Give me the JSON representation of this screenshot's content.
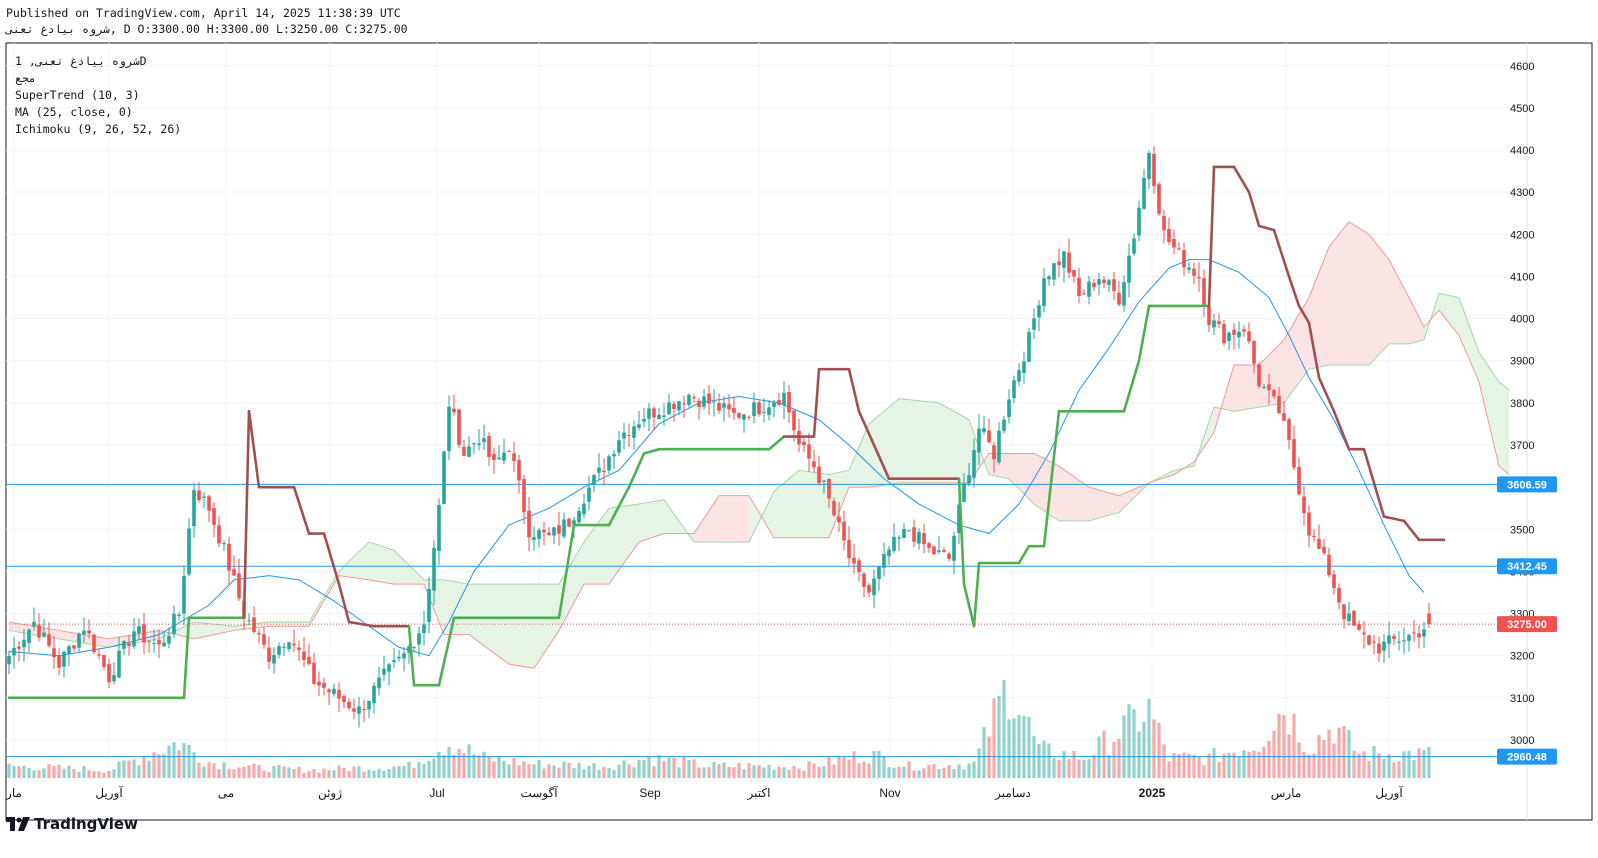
{
  "header": {
    "published": "Published on TradingView.com, April 14, 2025 11:38:39 UTC",
    "ohlc": "شروه بیادغ تعنی, D O:3300.00 H:3300.00 L:3250.00 C:3275.00"
  },
  "legend": {
    "symbol": "شروه بیادغ تعنی, 1D",
    "exchange": "مجع",
    "indicators": [
      "SuperTrend (10, 3)",
      "MA (25, close, 0)",
      "Ichimoku (9, 26, 52, 26)"
    ]
  },
  "brand": {
    "name": "TradingView",
    "icon": "tradingview-logo-icon"
  },
  "colors": {
    "up": "#26a69a",
    "down": "#ef5350",
    "supertrend_up": "#4caf50",
    "supertrend_down": "#a05050",
    "ma": "#2196f3",
    "hline": "#2196f3",
    "last_price": "#ef5350",
    "cloud_bull": "#e6f4e6",
    "cloud_bear": "#fde4e4"
  },
  "chart_data": {
    "type": "candlestick",
    "x_axis_labels": [
      "مار",
      "آوریل",
      "می",
      "ژوئن",
      "Jul",
      "آگوست",
      "Sep",
      "اکتبر",
      "Nov",
      "دسامبر",
      "2025",
      "مارس",
      "آوریل"
    ],
    "y_ticks": [
      3000,
      3100,
      3200,
      3300,
      3400,
      3500,
      3600,
      3700,
      3800,
      3900,
      4000,
      4100,
      4200,
      4300,
      4400,
      4500,
      4600
    ],
    "ylim": [
      2910,
      4655
    ],
    "horizontal_lines": [
      {
        "value": 3606.59,
        "label": "3606.59"
      },
      {
        "value": 3412.45,
        "label": "3412.45"
      },
      {
        "value": 2960.48,
        "label": "2960.48"
      }
    ],
    "last_price": {
      "value": 3275.0,
      "label": "3275.00"
    },
    "ohlc_last": {
      "open": 3300.0,
      "high": 3300.0,
      "low": 3250.0,
      "close": 3275.0
    },
    "price_anchors": [
      [
        0,
        3200
      ],
      [
        5,
        3280
      ],
      [
        10,
        3180
      ],
      [
        15,
        3270
      ],
      [
        20,
        3150
      ],
      [
        25,
        3260
      ],
      [
        30,
        3220
      ],
      [
        34,
        3300
      ],
      [
        37,
        3600
      ],
      [
        40,
        3550
      ],
      [
        43,
        3450
      ],
      [
        47,
        3300
      ],
      [
        52,
        3200
      ],
      [
        56,
        3250
      ],
      [
        61,
        3140
      ],
      [
        66,
        3100
      ],
      [
        70,
        3070
      ],
      [
        75,
        3150
      ],
      [
        79,
        3200
      ],
      [
        83,
        3280
      ],
      [
        86,
        3550
      ],
      [
        88,
        3800
      ],
      [
        91,
        3680
      ],
      [
        94,
        3720
      ],
      [
        97,
        3650
      ],
      [
        100,
        3700
      ],
      [
        104,
        3500
      ],
      [
        108,
        3480
      ],
      [
        112,
        3520
      ],
      [
        115,
        3580
      ],
      [
        119,
        3650
      ],
      [
        122,
        3720
      ],
      [
        127,
        3770
      ],
      [
        131,
        3790
      ],
      [
        136,
        3820
      ],
      [
        140,
        3800
      ],
      [
        145,
        3770
      ],
      [
        150,
        3790
      ],
      [
        155,
        3820
      ],
      [
        158,
        3700
      ],
      [
        161,
        3650
      ],
      [
        163,
        3600
      ],
      [
        166,
        3500
      ],
      [
        169,
        3400
      ],
      [
        172,
        3350
      ],
      [
        176,
        3450
      ],
      [
        180,
        3500
      ],
      [
        184,
        3450
      ],
      [
        188,
        3430
      ],
      [
        191,
        3600
      ],
      [
        194,
        3740
      ],
      [
        197,
        3680
      ],
      [
        200,
        3820
      ],
      [
        204,
        3950
      ],
      [
        207,
        4100
      ],
      [
        211,
        4150
      ],
      [
        214,
        4050
      ],
      [
        218,
        4100
      ],
      [
        222,
        4050
      ],
      [
        225,
        4200
      ],
      [
        228,
        4400
      ],
      [
        231,
        4200
      ],
      [
        234,
        4150
      ],
      [
        238,
        4100
      ],
      [
        240,
        4000
      ],
      [
        243,
        3960
      ],
      [
        247,
        3980
      ],
      [
        250,
        3850
      ],
      [
        254,
        3780
      ],
      [
        256,
        3700
      ],
      [
        258,
        3600
      ],
      [
        260,
        3500
      ],
      [
        262,
        3450
      ],
      [
        264,
        3400
      ],
      [
        267,
        3300
      ],
      [
        270,
        3250
      ],
      [
        274,
        3220
      ],
      [
        278,
        3240
      ],
      [
        281,
        3250
      ],
      [
        284,
        3275
      ]
    ],
    "supertrend": [
      [
        0,
        3100
      ],
      [
        35,
        3100
      ],
      [
        36,
        3290
      ],
      [
        47,
        3290
      ],
      [
        48,
        3780
      ],
      [
        50,
        3600
      ],
      [
        57,
        3600
      ],
      [
        60,
        3490
      ],
      [
        63,
        3490
      ],
      [
        66,
        3370
      ],
      [
        68,
        3280
      ],
      [
        73,
        3270
      ],
      [
        77,
        3270
      ],
      [
        80,
        3270
      ],
      [
        81,
        3130
      ],
      [
        86,
        3130
      ],
      [
        89,
        3290
      ],
      [
        110,
        3290
      ],
      [
        113,
        3510
      ],
      [
        120,
        3510
      ],
      [
        124,
        3600
      ],
      [
        127,
        3680
      ],
      [
        130,
        3690
      ],
      [
        152,
        3690
      ],
      [
        155,
        3720
      ],
      [
        161,
        3720
      ],
      [
        162,
        3880
      ],
      [
        168,
        3880
      ],
      [
        170,
        3780
      ],
      [
        176,
        3620
      ],
      [
        190,
        3620
      ],
      [
        191,
        3370
      ],
      [
        193,
        3270
      ],
      [
        194,
        3420
      ],
      [
        202,
        3420
      ],
      [
        204,
        3460
      ],
      [
        207,
        3460
      ],
      [
        210,
        3780
      ],
      [
        223,
        3780
      ],
      [
        226,
        3900
      ],
      [
        228,
        4030
      ],
      [
        240,
        4030
      ],
      [
        241,
        4360
      ],
      [
        245,
        4360
      ],
      [
        248,
        4300
      ],
      [
        250,
        4220
      ],
      [
        253,
        4210
      ],
      [
        256,
        4100
      ],
      [
        258,
        4030
      ],
      [
        260,
        3990
      ],
      [
        262,
        3860
      ],
      [
        265,
        3780
      ],
      [
        268,
        3690
      ],
      [
        271,
        3690
      ],
      [
        275,
        3530
      ],
      [
        279,
        3520
      ],
      [
        282,
        3475
      ],
      [
        287,
        3475
      ]
    ],
    "ma25": [
      [
        0,
        3210
      ],
      [
        10,
        3200
      ],
      [
        20,
        3220
      ],
      [
        30,
        3250
      ],
      [
        40,
        3320
      ],
      [
        45,
        3380
      ],
      [
        52,
        3390
      ],
      [
        58,
        3380
      ],
      [
        65,
        3330
      ],
      [
        72,
        3270
      ],
      [
        78,
        3220
      ],
      [
        84,
        3200
      ],
      [
        88,
        3280
      ],
      [
        93,
        3400
      ],
      [
        100,
        3510
      ],
      [
        108,
        3550
      ],
      [
        115,
        3600
      ],
      [
        122,
        3640
      ],
      [
        130,
        3750
      ],
      [
        138,
        3800
      ],
      [
        146,
        3815
      ],
      [
        154,
        3800
      ],
      [
        162,
        3760
      ],
      [
        168,
        3700
      ],
      [
        175,
        3620
      ],
      [
        182,
        3560
      ],
      [
        190,
        3510
      ],
      [
        196,
        3490
      ],
      [
        202,
        3560
      ],
      [
        208,
        3680
      ],
      [
        214,
        3830
      ],
      [
        220,
        3930
      ],
      [
        226,
        4040
      ],
      [
        232,
        4120
      ],
      [
        236,
        4140
      ],
      [
        240,
        4140
      ],
      [
        246,
        4110
      ],
      [
        252,
        4050
      ],
      [
        256,
        3960
      ],
      [
        260,
        3860
      ],
      [
        265,
        3760
      ],
      [
        270,
        3640
      ],
      [
        275,
        3510
      ],
      [
        280,
        3390
      ],
      [
        283,
        3350
      ]
    ],
    "ichimoku_cloud": [
      [
        0,
        3260,
        3280
      ],
      [
        10,
        3240,
        3260
      ],
      [
        20,
        3220,
        3240
      ],
      [
        30,
        3240,
        3260
      ],
      [
        37,
        3280,
        3240
      ],
      [
        45,
        3270,
        3260
      ],
      [
        52,
        3280,
        3270
      ],
      [
        60,
        3280,
        3270
      ],
      [
        66,
        3400,
        3390
      ],
      [
        72,
        3470,
        3380
      ],
      [
        77,
        3450,
        3370
      ],
      [
        83,
        3380,
        3370
      ],
      [
        87,
        3380,
        3250
      ],
      [
        92,
        3370,
        3250
      ],
      [
        100,
        3370,
        3180
      ],
      [
        105,
        3370,
        3170
      ],
      [
        110,
        3370,
        3260
      ],
      [
        115,
        3470,
        3370
      ],
      [
        120,
        3550,
        3370
      ],
      [
        126,
        3560,
        3470
      ],
      [
        131,
        3570,
        3490
      ],
      [
        137,
        3470,
        3490
      ],
      [
        142,
        3470,
        3580
      ],
      [
        148,
        3470,
        3580
      ],
      [
        153,
        3590,
        3480
      ],
      [
        158,
        3640,
        3480
      ],
      [
        164,
        3630,
        3480
      ],
      [
        168,
        3640,
        3600
      ],
      [
        172,
        3750,
        3600
      ],
      [
        178,
        3810,
        3610
      ],
      [
        186,
        3800,
        3610
      ],
      [
        192,
        3760,
        3610
      ],
      [
        196,
        3630,
        3680
      ],
      [
        200,
        3620,
        3680
      ],
      [
        205,
        3560,
        3680
      ],
      [
        210,
        3520,
        3650
      ],
      [
        216,
        3520,
        3600
      ],
      [
        222,
        3540,
        3580
      ],
      [
        228,
        3610,
        3610
      ],
      [
        233,
        3640,
        3630
      ],
      [
        237,
        3650,
        3660
      ],
      [
        241,
        3790,
        3730
      ],
      [
        245,
        3780,
        3890
      ],
      [
        250,
        3790,
        3890
      ],
      [
        255,
        3800,
        3950
      ],
      [
        260,
        3880,
        4050
      ],
      [
        264,
        3890,
        4170
      ],
      [
        268,
        3890,
        4230
      ],
      [
        272,
        3890,
        4200
      ],
      [
        276,
        3940,
        4140
      ],
      [
        280,
        3940,
        4050
      ],
      [
        283,
        3950,
        3980
      ],
      [
        286,
        4060,
        4020
      ],
      [
        290,
        4050,
        3960
      ],
      [
        294,
        3920,
        3850
      ],
      [
        298,
        3850,
        3650
      ],
      [
        300,
        3830,
        3630
      ]
    ],
    "volume_anchors": [
      [
        0,
        0.3
      ],
      [
        10,
        0.25
      ],
      [
        20,
        0.2
      ],
      [
        34,
        0.9
      ],
      [
        40,
        0.4
      ],
      [
        50,
        0.25
      ],
      [
        60,
        0.2
      ],
      [
        70,
        0.25
      ],
      [
        80,
        0.3
      ],
      [
        88,
        0.9
      ],
      [
        95,
        0.5
      ],
      [
        105,
        0.35
      ],
      [
        120,
        0.3
      ],
      [
        128,
        0.5
      ],
      [
        140,
        0.3
      ],
      [
        160,
        0.3
      ],
      [
        172,
        0.6
      ],
      [
        180,
        0.3
      ],
      [
        193,
        0.35
      ],
      [
        200,
        2.4
      ],
      [
        206,
        0.7
      ],
      [
        215,
        0.5
      ],
      [
        228,
        1.7
      ],
      [
        232,
        0.5
      ],
      [
        240,
        0.5
      ],
      [
        250,
        0.9
      ],
      [
        255,
        1.8
      ],
      [
        260,
        0.8
      ],
      [
        265,
        1.3
      ],
      [
        270,
        0.6
      ],
      [
        278,
        0.6
      ],
      [
        284,
        0.6
      ]
    ]
  }
}
